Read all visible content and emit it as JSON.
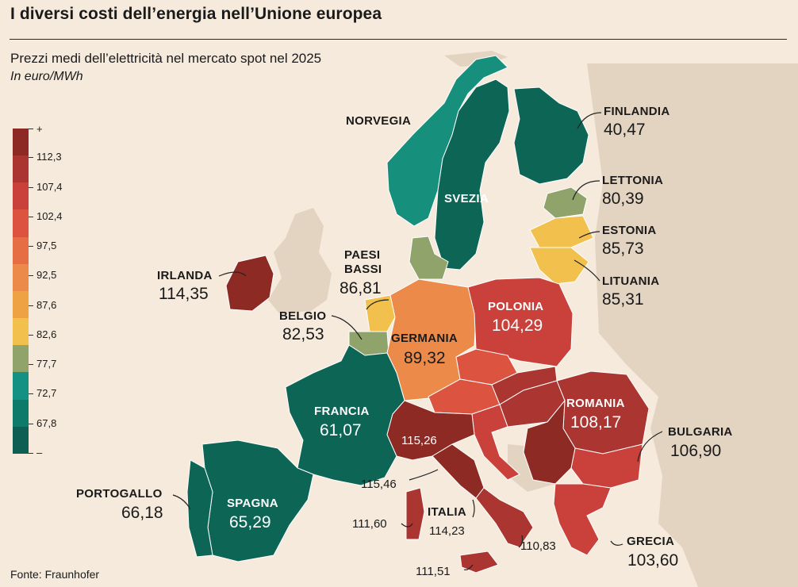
{
  "title": "I diversi costi dell’energia nell’Unione europea",
  "subtitle": "Prezzi medi dell’elettricità nel mercato spot nel 2025",
  "unit": "In euro/MWh",
  "source": "Fonte: Fraunhofer",
  "legend": {
    "top": "+",
    "bottom": "–",
    "thresholds": [
      "112,3",
      "107,4",
      "102,4",
      "97,5",
      "92,5",
      "87,6",
      "82,6",
      "77,7",
      "72,7",
      "67,8"
    ],
    "colors": [
      "#8e2a24",
      "#ab3530",
      "#c9413a",
      "#dc5440",
      "#e66e45",
      "#ec8a4a",
      "#efa243",
      "#f2c04d",
      "#8fa36a",
      "#149182",
      "#0e7a6a",
      "#0c5f52"
    ]
  },
  "countries": {
    "norvegia": {
      "name": "NORVEGIA"
    },
    "svezia": {
      "name": "SVEZIA"
    },
    "finlandia": {
      "name": "FINLANDIA",
      "value": "40,47"
    },
    "lettonia": {
      "name": "LETTONIA",
      "value": "80,39"
    },
    "estonia": {
      "name": "ESTONIA",
      "value": "85,73"
    },
    "lituania": {
      "name": "LITUANIA",
      "value": "85,31"
    },
    "irlanda": {
      "name": "IRLANDA",
      "value": "114,35"
    },
    "paesi_bassi": {
      "name1": "PAESI",
      "name2": "BASSI",
      "value": "86,81"
    },
    "belgio": {
      "name": "BELGIO",
      "value": "82,53"
    },
    "germania": {
      "name": "GERMANIA",
      "value": "89,32"
    },
    "polonia": {
      "name": "POLONIA",
      "value": "104,29"
    },
    "francia": {
      "name": "FRANCIA",
      "value": "61,07"
    },
    "romania": {
      "name": "ROMANIA",
      "value": "108,17"
    },
    "bulgaria": {
      "name": "BULGARIA",
      "value": "106,90"
    },
    "portogallo": {
      "name": "PORTOGALLO",
      "value": "66,18"
    },
    "spagna": {
      "name": "SPAGNA",
      "value": "65,29"
    },
    "italia": {
      "name": "ITALIA",
      "value": "114,23"
    },
    "grecia": {
      "name": "GRECIA",
      "value": "103,60"
    },
    "italia_zones": {
      "nord": "115,26",
      "centro_nord": "115,46",
      "sardegna": "111,60",
      "sud": "110,83",
      "sicilia": "111,51"
    }
  }
}
